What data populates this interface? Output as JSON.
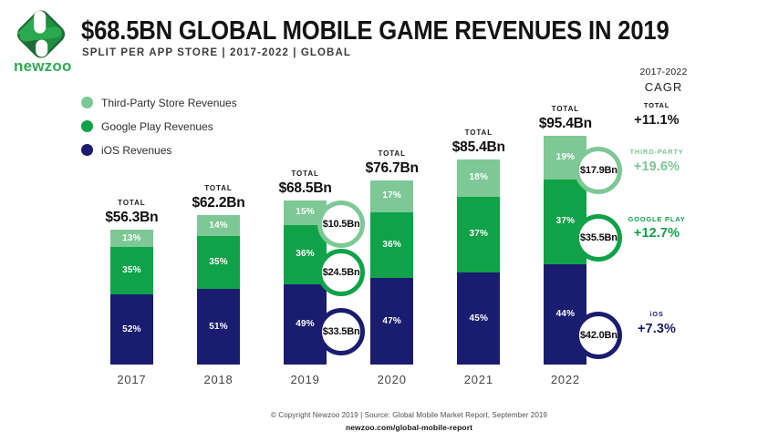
{
  "header": {
    "logo_wordmark": "newzoo",
    "title": "$68.5BN GLOBAL MOBILE GAME REVENUES IN 2019",
    "subtitle": "SPLIT PER APP STORE | 2017-2022 | GLOBAL"
  },
  "colors": {
    "third_party": "#7DC895",
    "google_play": "#10A248",
    "ios": "#1A1C70",
    "logo_green": "#2FAD4F",
    "logo_dark_green": "#1F6B38",
    "title_text": "#131313"
  },
  "legend": {
    "items": [
      {
        "label": "Third-Party Store Revenues",
        "series": "third_party",
        "color": "#7DC895"
      },
      {
        "label": "Google Play Revenues",
        "series": "google_play",
        "color": "#10A248"
      },
      {
        "label": "iOS Revenues",
        "series": "ios",
        "color": "#1A1C70"
      }
    ]
  },
  "chart_data": {
    "type": "bar",
    "stacked": true,
    "title": "$68.5BN GLOBAL MOBILE GAME REVENUES IN 2019",
    "subtitle": "SPLIT PER APP STORE | 2017-2022 | GLOBAL",
    "unit": "USD billions",
    "categories": [
      "2017",
      "2018",
      "2019",
      "2020",
      "2021",
      "2022"
    ],
    "totals": [
      56.3,
      62.2,
      68.5,
      76.7,
      85.4,
      95.4
    ],
    "total_word": "TOTAL",
    "total_labels": [
      "$56.3Bn",
      "$62.2Bn",
      "$68.5Bn",
      "$76.7Bn",
      "$85.4Bn",
      "$95.4Bn"
    ],
    "series": [
      {
        "name": "iOS Revenues",
        "key": "ios",
        "color": "#1A1C70",
        "pct": [
          52,
          51,
          49,
          47,
          45,
          44
        ],
        "pct_labels": [
          "52%",
          "51%",
          "49%",
          "47%",
          "45%",
          "44%"
        ]
      },
      {
        "name": "Google Play Revenues",
        "key": "google_play",
        "color": "#10A248",
        "pct": [
          35,
          35,
          36,
          36,
          37,
          37
        ],
        "pct_labels": [
          "35%",
          "35%",
          "36%",
          "36%",
          "37%",
          "37%"
        ]
      },
      {
        "name": "Third-Party Store Revenues",
        "key": "third_party",
        "color": "#7DC895",
        "pct": [
          13,
          14,
          15,
          17,
          18,
          19
        ],
        "pct_labels": [
          "13%",
          "14%",
          "15%",
          "17%",
          "18%",
          "19%"
        ]
      }
    ],
    "callouts": [
      {
        "year": "2019",
        "values": [
          {
            "label": "$10.5Bn",
            "series": "third_party"
          },
          {
            "label": "$24.5Bn",
            "series": "google_play"
          },
          {
            "label": "$33.5Bn",
            "series": "ios"
          }
        ]
      },
      {
        "year": "2022",
        "values": [
          {
            "label": "$17.9Bn",
            "series": "third_party"
          },
          {
            "label": "$35.5Bn",
            "series": "google_play"
          },
          {
            "label": "$42.0Bn",
            "series": "ios"
          }
        ]
      }
    ],
    "legend_position": "top-left",
    "grid": false
  },
  "cagr_panel": {
    "period": "2017-2022",
    "heading": "CAGR",
    "rows": [
      {
        "label": "TOTAL",
        "value": "+11.1%",
        "series": "total",
        "color": "#131313"
      },
      {
        "label": "THIRD-PARTY",
        "value": "+19.6%",
        "series": "third_party",
        "color": "#7DC895"
      },
      {
        "label": "GOOGLE PLAY",
        "value": "+12.7%",
        "series": "google_play",
        "color": "#10A248"
      },
      {
        "label": "iOS",
        "value": "+7.3%",
        "series": "ios",
        "color": "#1A1C70"
      }
    ]
  },
  "footer": {
    "copyright": "© Copyright Newzoo 2019 | Source: Global Mobile Market Report, September 2019",
    "link": "newzoo.com/global-mobile-report"
  }
}
